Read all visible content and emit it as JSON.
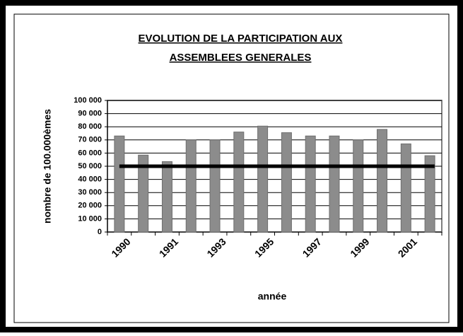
{
  "chart_data": {
    "type": "bar",
    "title": "EVOLUTION DE LA PARTICIPATION AUX ASSEMBLEES GENERALES",
    "y_label": "nombre de 100.000èmes",
    "x_label": "année",
    "categories": [
      "1990",
      null,
      "1991",
      null,
      "1993",
      null,
      "1995",
      null,
      "1997",
      null,
      "1999",
      null,
      "2001",
      null
    ],
    "values": [
      73000,
      58500,
      53500,
      70000,
      70000,
      76000,
      80500,
      75500,
      73000,
      73000,
      70000,
      78000,
      67000,
      58000
    ],
    "color": "#8c8c8c",
    "threshold": 50000,
    "threshold_color": "#000000",
    "ylim": [
      0,
      100000
    ],
    "yticks": [
      0,
      {
        "value": 10000,
        "label": "10 000"
      },
      {
        "value": 20000,
        "label": "20 000"
      },
      {
        "value": 30000,
        "label": "30 000"
      },
      {
        "value": 40000,
        "label": "40 000"
      },
      {
        "value": 50000,
        "label": "50 000"
      },
      {
        "value": 60000,
        "label": "60 000"
      },
      {
        "value": 70000,
        "label": "70 000"
      },
      {
        "value": 80000,
        "label": "80 000"
      },
      {
        "value": 90000,
        "label": "90 000"
      },
      {
        "value": 100000,
        "label": "100 000"
      }
    ],
    "grid": true
  }
}
